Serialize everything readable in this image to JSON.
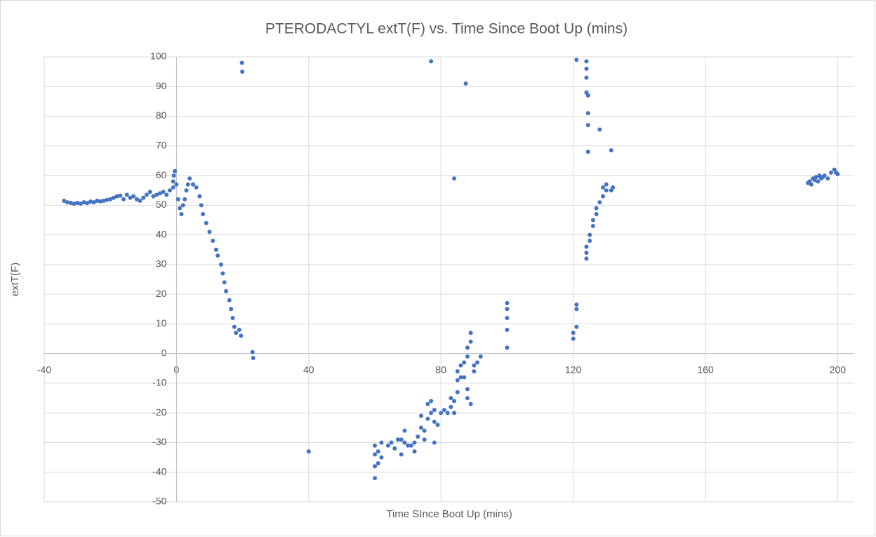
{
  "chart_data": {
    "type": "scatter",
    "title": "PTERODACTYL extT(F) vs. Time Since Boot Up (mins)",
    "x_label": "Time SInce Boot Up (mins)",
    "y_label": "extT(F)",
    "color": "#4472c4",
    "xlim": [
      -40,
      205
    ],
    "xticks": [
      -40,
      0,
      40,
      80,
      120,
      160,
      200
    ],
    "ylim": [
      -50,
      100
    ],
    "yticks": [
      -50,
      -40,
      -30,
      -20,
      -10,
      0,
      10,
      20,
      30,
      40,
      50,
      60,
      70,
      80,
      90,
      100
    ],
    "grid": true,
    "x": [
      -34,
      -33,
      -32,
      -31,
      -30,
      -29,
      -28,
      -27,
      -26,
      -25,
      -24,
      -23,
      -22,
      -21,
      -20,
      -19,
      -18,
      -17,
      -16,
      -15,
      -14,
      -13,
      -12,
      -11,
      -10,
      -9,
      -8,
      -7,
      -6,
      -5,
      -4,
      -3,
      -2,
      -1,
      -1,
      -0.8,
      -0.5,
      0,
      0.5,
      1,
      1.5,
      2,
      2.5,
      3,
      3.5,
      4,
      5,
      6,
      7,
      7.5,
      8,
      9,
      10,
      11,
      12,
      12.5,
      13.5,
      14,
      14.5,
      15,
      16,
      16.5,
      17,
      17.5,
      18,
      19,
      19.5,
      19.8,
      19.9,
      23,
      23.2,
      40,
      60,
      60,
      60,
      60,
      61,
      61,
      62,
      62,
      64,
      65,
      66,
      67,
      68,
      68,
      69,
      69,
      70,
      71,
      72,
      72,
      73,
      74,
      74,
      75,
      75,
      76,
      76,
      77,
      77,
      78,
      78,
      78,
      79,
      80,
      81,
      82,
      83,
      83,
      84,
      84,
      85,
      85,
      85,
      86,
      86,
      87,
      87,
      88,
      88,
      88,
      88,
      89,
      89,
      89,
      90,
      90,
      91,
      92,
      100,
      100,
      100,
      100,
      100,
      77,
      84,
      87.5,
      120,
      120,
      121,
      121,
      121,
      121,
      124,
      124,
      124,
      124,
      124,
      124,
      124,
      124.5,
      124.5,
      124.5,
      124.5,
      125,
      125,
      126,
      126,
      127,
      127,
      128,
      128,
      129,
      129,
      130,
      130,
      131.5,
      131.5,
      132,
      191,
      191.5,
      192,
      192.5,
      193,
      193.5,
      194,
      194.5,
      195,
      195.5,
      196,
      197,
      198,
      199,
      199.5,
      200
    ],
    "values": [
      51.5,
      51,
      50.8,
      50.5,
      50.8,
      50.5,
      51,
      50.7,
      51.2,
      51,
      51.5,
      51.3,
      51.5,
      51.8,
      52,
      52.5,
      53,
      53.2,
      52,
      53.5,
      52.5,
      53,
      52,
      51.5,
      52.5,
      53.5,
      54.5,
      53,
      53.5,
      54,
      54.5,
      53.5,
      55,
      56,
      58,
      60,
      61.5,
      57,
      52,
      49,
      47,
      50,
      52,
      55,
      57,
      59,
      57,
      56,
      53,
      50,
      47,
      44,
      41,
      38,
      35,
      33,
      30,
      27,
      24,
      21,
      18,
      15,
      12,
      9,
      7,
      8,
      6,
      98,
      95,
      0.5,
      -1.5,
      -33,
      -42,
      -38,
      -34,
      -31,
      -37,
      -33,
      -35,
      -30,
      -31,
      -30,
      -32,
      -29,
      -34,
      -29,
      -26,
      -30,
      -31,
      -31,
      -33,
      -30,
      -28,
      -25,
      -21,
      -29,
      -26,
      -22,
      -17,
      -20,
      -16,
      -30,
      -23,
      -19,
      -24,
      -20,
      -19,
      -20,
      -18,
      -15,
      -20,
      -16,
      -13,
      -9,
      -6,
      -8,
      -4,
      -8,
      -3,
      -15,
      -12,
      -1,
      2,
      4,
      7,
      -17,
      -6,
      -4,
      -3,
      -1,
      2,
      8,
      12,
      15,
      17,
      98.5,
      59,
      91,
      5,
      7,
      9,
      15,
      16.5,
      99,
      32,
      34,
      36,
      96,
      93,
      88,
      98.5,
      81,
      77,
      68,
      87,
      38,
      40,
      43,
      45,
      47,
      49,
      51,
      75.5,
      53,
      56,
      55,
      57,
      55,
      68.5,
      56,
      57.5,
      58,
      57,
      59,
      58.5,
      59.5,
      58,
      60,
      59,
      59.5,
      60,
      59,
      61,
      62,
      61,
      60.5
    ]
  }
}
